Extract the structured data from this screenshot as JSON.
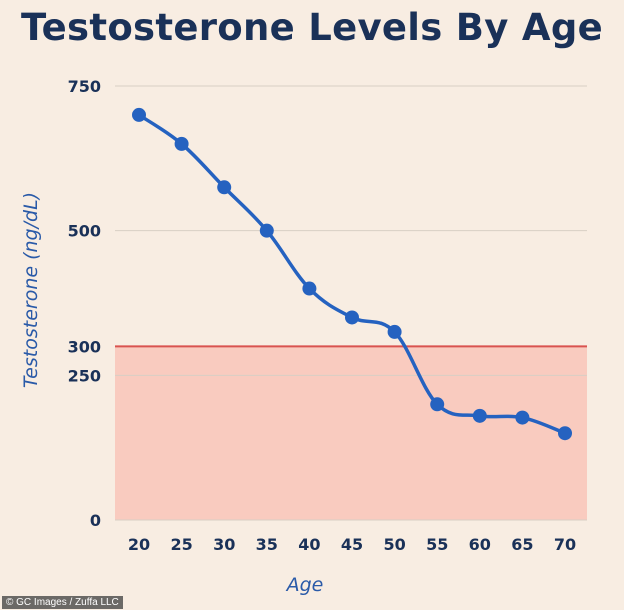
{
  "chart_data": {
    "type": "line",
    "title": "Testosterone Levels By Age",
    "xlabel": "Age",
    "ylabel": "Testosterone (ng/dL)",
    "categories": [
      20,
      25,
      30,
      35,
      40,
      45,
      50,
      55,
      60,
      65,
      70
    ],
    "series": [
      {
        "values": [
          700,
          650,
          575,
          500,
          400,
          350,
          325,
          200,
          180,
          177,
          150
        ]
      }
    ],
    "yticks": [
      0,
      250,
      300,
      500,
      750
    ],
    "ylim": [
      0,
      750
    ],
    "threshold": {
      "value": 300,
      "line_color": "#d9534f",
      "fill_color": "#f9cbbf"
    },
    "line_color": "#2562c0",
    "grid": true
  },
  "credit": "© GC Images / Zuffa LLC"
}
